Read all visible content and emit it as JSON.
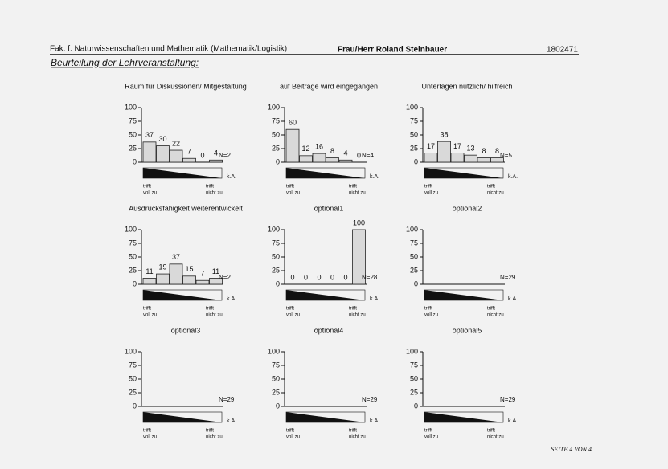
{
  "header": {
    "faculty": "Fak. f. Naturwissenschaften und Mathematik (Mathematik/Logistik)",
    "lecturer": "Frau/Herr Roland Steinbauer",
    "number": "1802471",
    "heading": "Beurteilung der Lehrveranstaltung:"
  },
  "footer": "SEITE 4 VON 4",
  "chart_data": [
    {
      "type": "bar",
      "title": "Raum für Diskussionen/ Mitgestaltung",
      "values": [
        37,
        30,
        22,
        7,
        0,
        4
      ],
      "ylim": [
        0,
        100
      ],
      "yticks": [
        0,
        25,
        50,
        75,
        100
      ],
      "n_label": "N=2",
      "na_label": "k.A.",
      "scale_left": [
        "trifft",
        "voll zu"
      ],
      "scale_right": [
        "trifft",
        "nicht zu"
      ]
    },
    {
      "type": "bar",
      "title": "auf Beiträge wird eingegangen",
      "values": [
        60,
        12,
        16,
        8,
        4,
        0
      ],
      "ylim": [
        0,
        100
      ],
      "yticks": [
        0,
        25,
        50,
        75,
        100
      ],
      "n_label": "N=4",
      "na_label": "k.A.",
      "scale_left": [
        "trifft",
        "voll zu"
      ],
      "scale_right": [
        "trifft",
        "nicht zu"
      ]
    },
    {
      "type": "bar",
      "title": "Unterlagen nützlich/ hilfreich",
      "values": [
        17,
        38,
        17,
        13,
        8,
        8
      ],
      "ylim": [
        0,
        100
      ],
      "yticks": [
        0,
        25,
        50,
        75,
        100
      ],
      "n_label": "N=5",
      "na_label": "k.A.",
      "scale_left": [
        "trifft",
        "voll zu"
      ],
      "scale_right": [
        "trifft",
        "nicht zu"
      ]
    },
    {
      "type": "bar",
      "title": "Ausdrucksfähigkeit weiterentwickelt",
      "values": [
        11,
        19,
        37,
        15,
        7,
        11
      ],
      "ylim": [
        0,
        100
      ],
      "yticks": [
        0,
        25,
        50,
        75,
        100
      ],
      "n_label": "N=2",
      "na_label": "k.A",
      "scale_left": [
        "trifft",
        "voll zu"
      ],
      "scale_right": [
        "trifft",
        "nicht zu"
      ]
    },
    {
      "type": "bar",
      "title": "optional1",
      "values": [
        0,
        0,
        0,
        0,
        0,
        100
      ],
      "ylim": [
        0,
        100
      ],
      "yticks": [
        0,
        25,
        50,
        75,
        100
      ],
      "n_label": "N=28",
      "na_label": "k.A.",
      "scale_left": [
        "trifft",
        "voll zu"
      ],
      "scale_right": [
        "trifft",
        "nicht zu"
      ]
    },
    {
      "type": "bar",
      "title": "optional2",
      "ylim": [
        0,
        100
      ],
      "yticks": [
        0,
        25,
        50,
        75,
        100
      ],
      "n_label": "N=29",
      "na_label": "k.A.",
      "scale_left": [
        "trifft",
        "voll zu"
      ],
      "scale_right": [
        "trifft",
        "nicht zu"
      ]
    },
    {
      "type": "bar",
      "title": "optional3",
      "ylim": [
        0,
        100
      ],
      "yticks": [
        0,
        25,
        50,
        75,
        100
      ],
      "n_label": "N=29",
      "na_label": "k.A.",
      "scale_left": [
        "trifft",
        "voll zu"
      ],
      "scale_right": [
        "trifft",
        "nicht zu"
      ]
    },
    {
      "type": "bar",
      "title": "optional4",
      "ylim": [
        0,
        100
      ],
      "yticks": [
        0,
        25,
        50,
        75,
        100
      ],
      "n_label": "N=29",
      "na_label": "k.A.",
      "scale_left": [
        "trifft",
        "voll zu"
      ],
      "scale_right": [
        "trifft",
        "nicht zu"
      ]
    },
    {
      "type": "bar",
      "title": "optional5",
      "ylim": [
        0,
        100
      ],
      "yticks": [
        0,
        25,
        50,
        75,
        100
      ],
      "n_label": "N=29",
      "na_label": "k.A.",
      "scale_left": [
        "trifft",
        "voll zu"
      ],
      "scale_right": [
        "trifft",
        "nicht zu"
      ]
    }
  ]
}
